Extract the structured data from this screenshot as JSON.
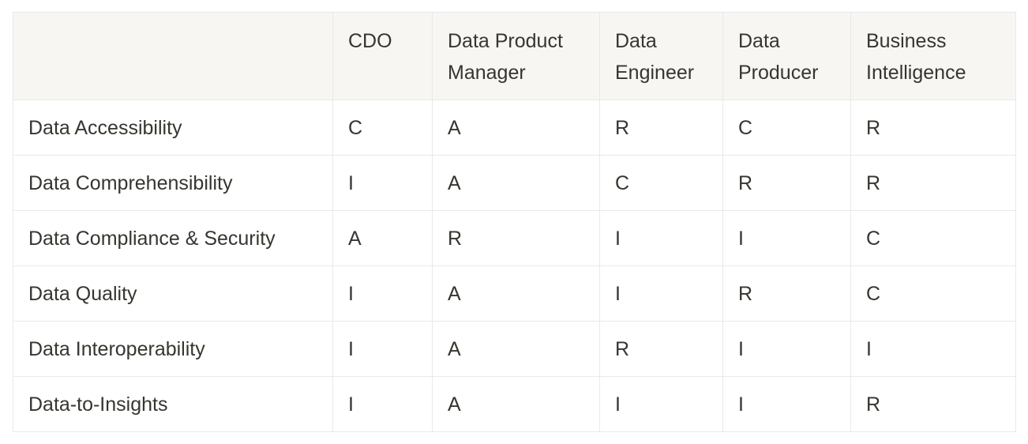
{
  "table": {
    "columns": [
      "CDO",
      "Data Product Manager",
      "Data Engineer",
      "Data Producer",
      "Business Intelligence"
    ],
    "rows": [
      [
        "Data Accessibility",
        "C",
        "A",
        "R",
        "C",
        "R"
      ],
      [
        "Data Comprehensibility",
        "I",
        "A",
        "C",
        "R",
        "R"
      ],
      [
        "Data Compliance & Security",
        "A",
        "R",
        "I",
        "I",
        "C"
      ],
      [
        "Data Quality",
        "I",
        "A",
        "I",
        "R",
        "C"
      ],
      [
        "Data Interoperability",
        "I",
        "A",
        "R",
        "I",
        "I"
      ],
      [
        "Data-to-Insights",
        "I",
        "A",
        "I",
        "I",
        "R"
      ]
    ]
  }
}
